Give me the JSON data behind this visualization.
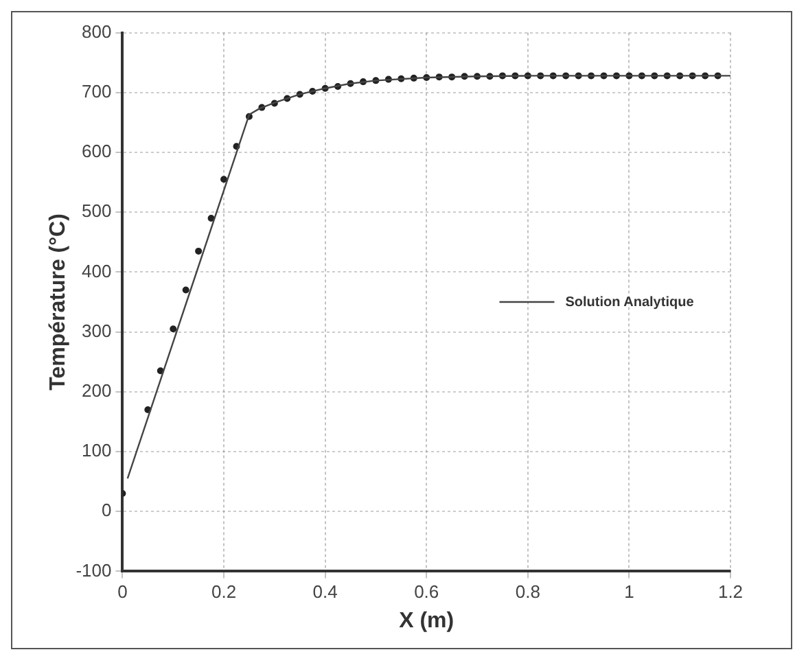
{
  "chart_data": {
    "type": "line",
    "xlabel": "X (m)",
    "ylabel": "Température (°C)",
    "xlim": [
      0,
      1.2
    ],
    "xticks": [
      0,
      0.2,
      0.4,
      0.6,
      0.8,
      1,
      1.2
    ],
    "ylim": [
      -100,
      800
    ],
    "yticks": [
      -100,
      0,
      100,
      200,
      300,
      400,
      500,
      600,
      700,
      800
    ],
    "grid": true,
    "legend": "right",
    "series": [
      {
        "name": "Solution Analytique",
        "type": "line",
        "color": "#444444",
        "marker": "none",
        "line_style": "solid",
        "x": [
          0.01,
          0.25,
          0.27,
          0.3,
          0.35,
          0.4,
          0.45,
          0.5,
          0.6,
          0.7,
          0.8,
          1,
          1.2
        ],
        "values": [
          55,
          663,
          673,
          683,
          697,
          707,
          715,
          720,
          725,
          727,
          728,
          728,
          728
        ]
      },
      {
        "type": "scatter",
        "color": "#222222",
        "marker": "circle",
        "x": [
          0,
          0.05,
          0.075,
          0.1,
          0.125,
          0.15,
          0.175,
          0.2,
          0.225,
          0.25,
          0.275,
          0.3,
          0.325,
          0.35,
          0.375,
          0.4,
          0.425,
          0.45,
          0.475,
          0.5,
          0.525,
          0.55,
          0.575,
          0.6,
          0.625,
          0.65,
          0.675,
          0.7,
          0.725,
          0.75,
          0.775,
          0.8,
          0.825,
          0.85,
          0.875,
          0.9,
          0.925,
          0.95,
          0.975,
          1,
          1.025,
          1.05,
          1.075,
          1.1,
          1.125,
          1.15,
          1.175
        ],
        "values": [
          30,
          170,
          235,
          305,
          370,
          435,
          490,
          555,
          610,
          660,
          675,
          682,
          690,
          697,
          702,
          707,
          710,
          715,
          718,
          720,
          722,
          723,
          724,
          725,
          726,
          726,
          727,
          727,
          727,
          728,
          728,
          728,
          728,
          728,
          728,
          728,
          728,
          728,
          728,
          728,
          728,
          728,
          728,
          728,
          728,
          728,
          728
        ]
      }
    ]
  }
}
